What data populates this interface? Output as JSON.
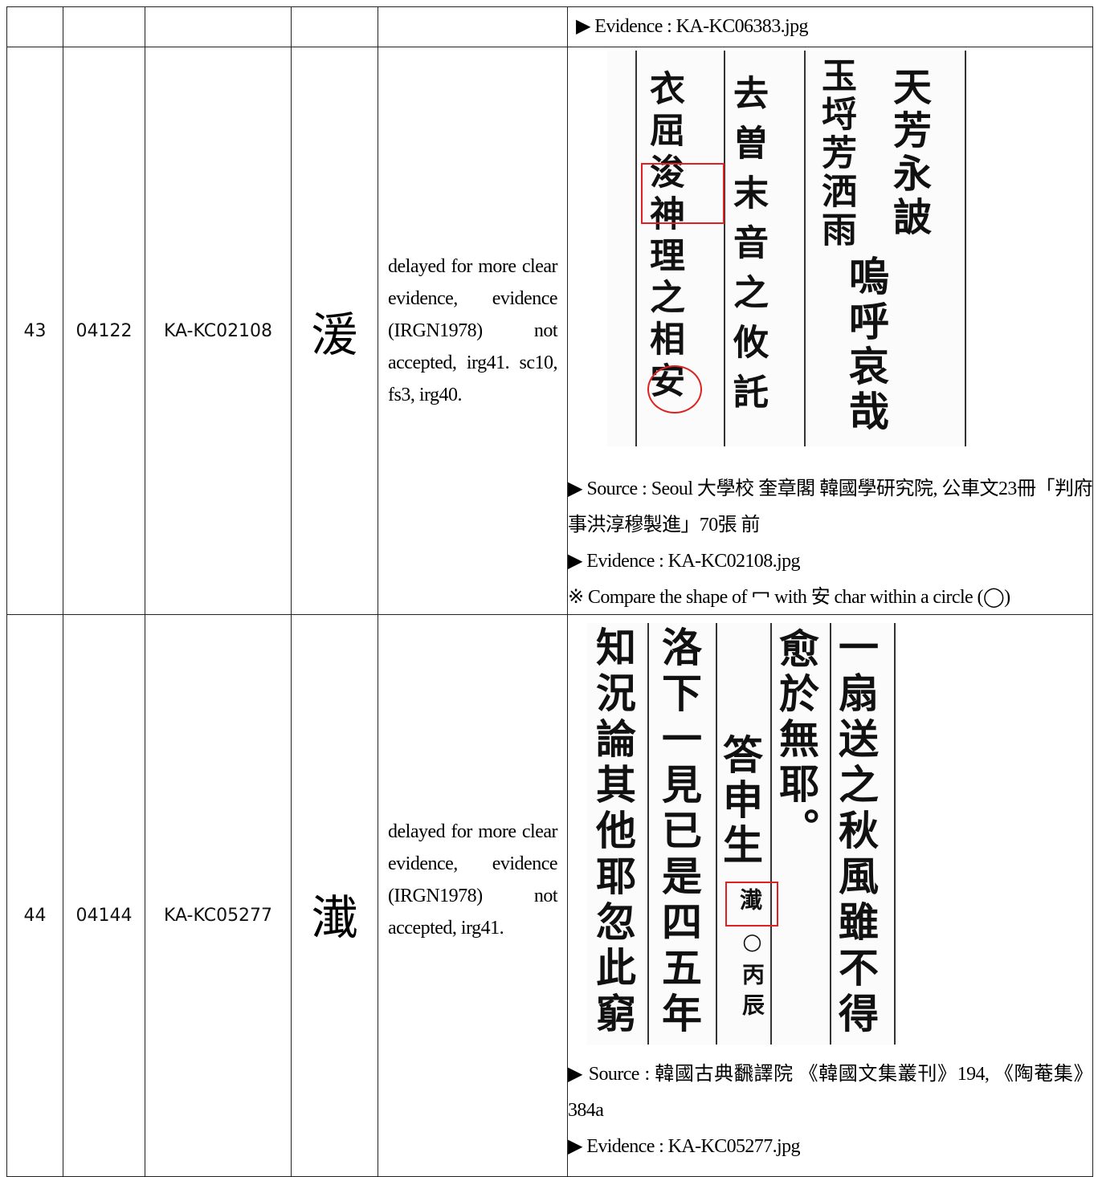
{
  "table": {
    "rows": [
      {
        "evidence": {
          "lines": [
            "▶ Evidence : KA-KC06383.jpg"
          ]
        }
      },
      {
        "no": "43",
        "code": "04122",
        "id": "KA-KC02108",
        "char": "湲",
        "remark": "delayed for more clear evidence, evidence (IRGN1978) not accepted, irg41. sc10, fs3, irg40.",
        "evidence": {
          "image": {
            "columns": [
              "衣屈浚神理之相安",
              "去曽末音之攸託",
              "玉埒芳洒雨",
              "嗚呼哀哉",
              "天芳永詖"
            ]
          },
          "lines": [
            "▶ Source : Seoul 大學校 奎章閣 韓國學研究院, 公車文23冊「判府事洪淳穆製進」70張 前",
            "▶ Evidence : KA-KC02108.jpg",
            "※ Compare the shape of 冖 with 安 char within a circle (◯)"
          ]
        }
      },
      {
        "no": "44",
        "code": "04144",
        "id": "KA-KC05277",
        "char": "瀐",
        "remark": "delayed for more clear evidence, evidence (IRGN1978) not accepted, irg41.",
        "evidence": {
          "image": {
            "columns": [
              "知況論其他耶忽此窮",
              "洛下一見已是四五年",
              "答申生",
              "瀐",
              "○丙辰",
              "愈於無耶。",
              "一扇送之秋風雖不得"
            ]
          },
          "lines": [
            "▶ Source : 韓國古典飜譯院 《韓國文集叢刊》194, 《陶菴集》 384a",
            "▶ Evidence : KA-KC05277.jpg"
          ]
        }
      }
    ]
  }
}
